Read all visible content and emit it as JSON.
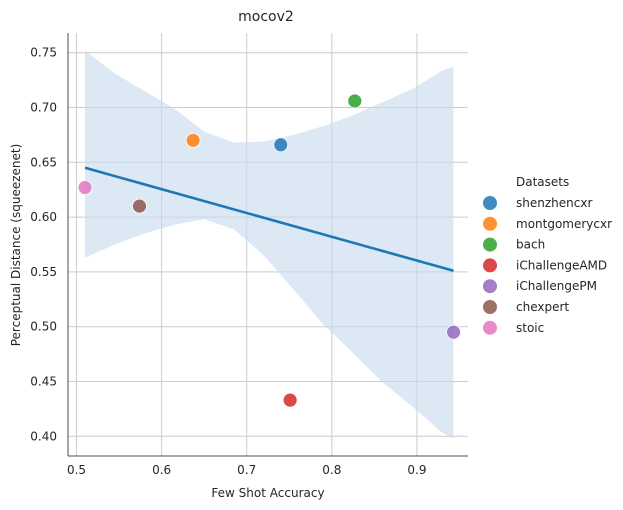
{
  "chart_data": {
    "type": "scatter",
    "title": "mocov2",
    "xlabel": "Few Shot Accuracy",
    "ylabel": "Perceptual Distance (squeezenet)",
    "xlim": [
      0.49,
      0.96
    ],
    "ylim": [
      0.382,
      0.768
    ],
    "xticks": [
      0.5,
      0.6,
      0.7,
      0.8,
      0.9
    ],
    "xtick_labels": [
      "0.5",
      "0.6",
      "0.7",
      "0.8",
      "0.9"
    ],
    "yticks": [
      0.4,
      0.45,
      0.5,
      0.55,
      0.6,
      0.65,
      0.7,
      0.75
    ],
    "ytick_labels": [
      "0.40",
      "0.45",
      "0.50",
      "0.55",
      "0.60",
      "0.65",
      "0.70",
      "0.75"
    ],
    "grid": true,
    "legend_title": "Datasets",
    "legend_position": "right",
    "series": [
      {
        "name": "shenzhencxr",
        "color": "#1f77b4",
        "x": 0.74,
        "y": 0.666
      },
      {
        "name": "montgomerycxr",
        "color": "#ff7f0e",
        "x": 0.637,
        "y": 0.67
      },
      {
        "name": "bach",
        "color": "#2ca02c",
        "x": 0.827,
        "y": 0.706
      },
      {
        "name": "iChallengeAMD",
        "color": "#d62728",
        "x": 0.751,
        "y": 0.433
      },
      {
        "name": "iChallengePM",
        "color": "#9467bd",
        "x": 0.943,
        "y": 0.495
      },
      {
        "name": "chexpert",
        "color": "#8c564b",
        "x": 0.574,
        "y": 0.61
      },
      {
        "name": "stoic",
        "color": "#e377c2",
        "x": 0.51,
        "y": 0.627
      }
    ],
    "regression": {
      "color": "#1f77b4",
      "x": [
        0.51,
        0.943
      ],
      "y": [
        0.645,
        0.551
      ],
      "ci_color": "#c5d9ec",
      "ci_x": [
        0.51,
        0.545,
        0.58,
        0.615,
        0.65,
        0.685,
        0.72,
        0.755,
        0.79,
        0.825,
        0.86,
        0.895,
        0.93,
        0.943
      ],
      "ci_upper": [
        0.752,
        0.731,
        0.715,
        0.699,
        0.678,
        0.668,
        0.669,
        0.675,
        0.683,
        0.693,
        0.705,
        0.717,
        0.734,
        0.737
      ],
      "ci_lower": [
        0.563,
        0.575,
        0.585,
        0.593,
        0.598,
        0.589,
        0.565,
        0.534,
        0.502,
        0.476,
        0.449,
        0.427,
        0.403,
        0.398
      ]
    }
  }
}
